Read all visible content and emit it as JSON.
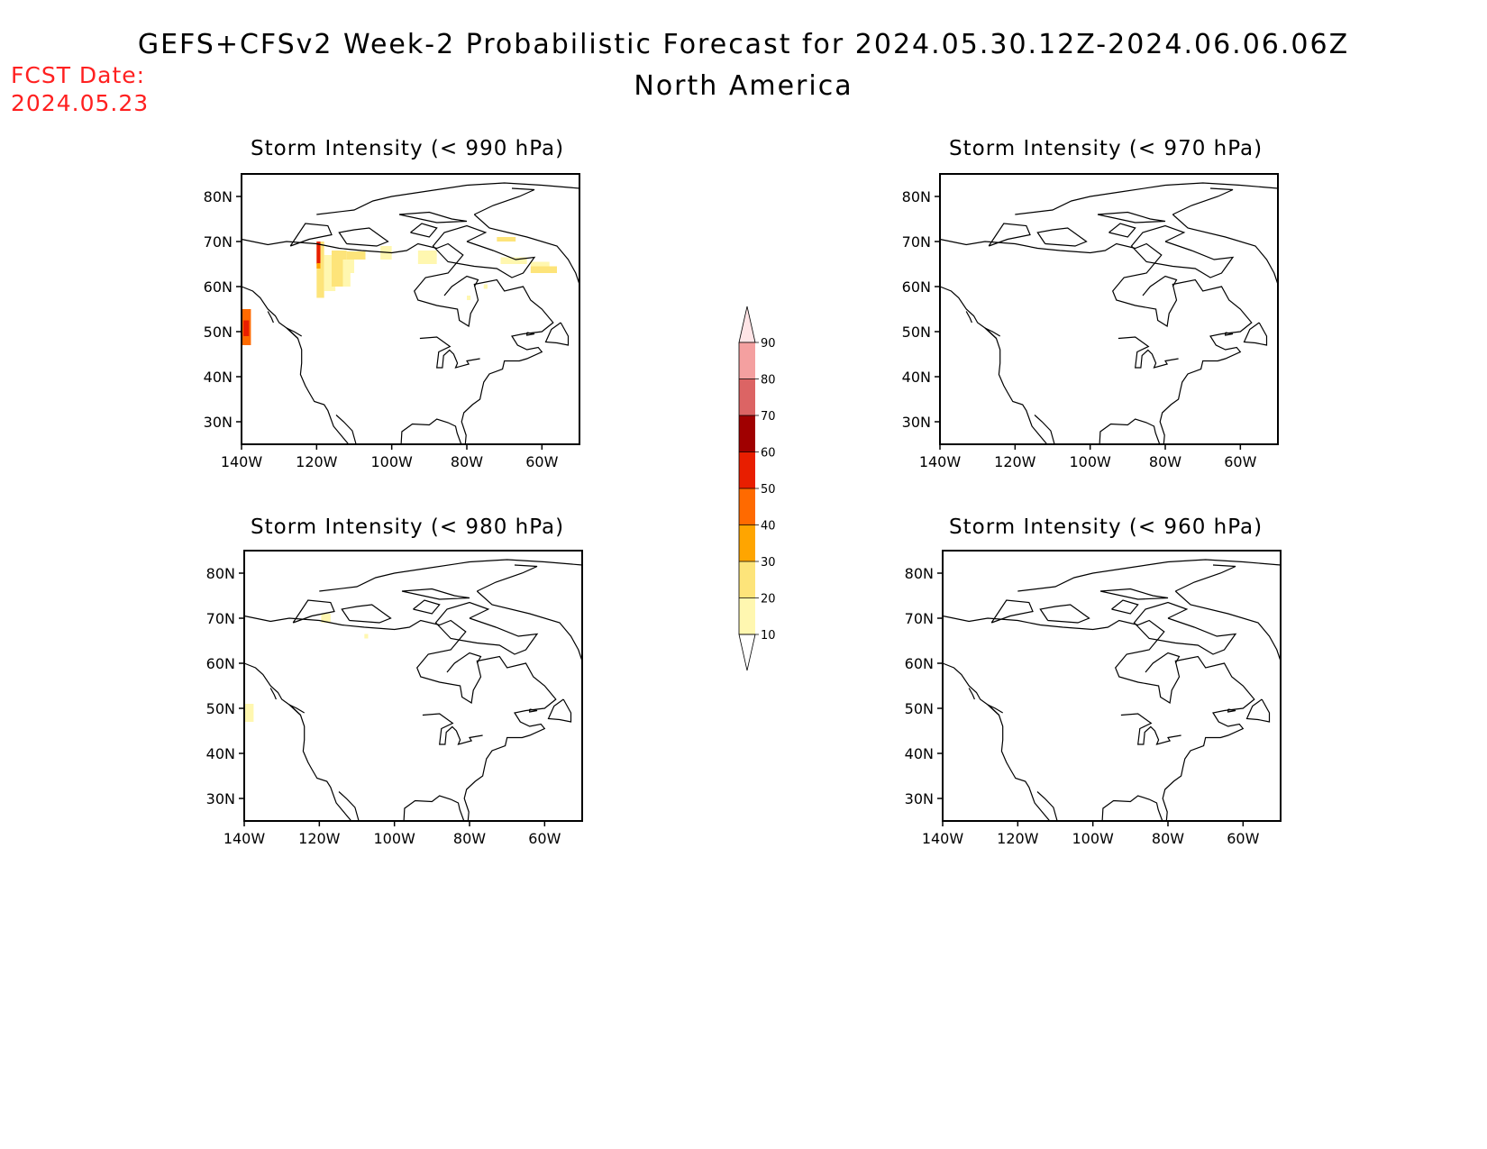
{
  "header": {
    "title": "GEFS+CFSv2 Week-2 Probabilistic Forecast for 2024.05.30.12Z-2024.06.06.06Z",
    "subtitle": "North America",
    "fcst_label": "FCST Date:",
    "fcst_date": "2024.05.23"
  },
  "panels": [
    {
      "title": "Storm Intensity (< 990 hPa)"
    },
    {
      "title": "Storm Intensity (< 970 hPa)"
    },
    {
      "title": "Storm Intensity (< 980 hPa)"
    },
    {
      "title": "Storm Intensity (< 960 hPa)"
    }
  ],
  "axes": {
    "lat_ticks": [
      "30N",
      "40N",
      "50N",
      "60N",
      "70N",
      "80N"
    ],
    "lon_ticks": [
      "140W",
      "120W",
      "100W",
      "80W",
      "60W"
    ]
  },
  "colorbar": {
    "levels": [
      "10",
      "20",
      "30",
      "40",
      "50",
      "60",
      "70",
      "80",
      "90"
    ],
    "colors": [
      "#fff7b0",
      "#fde47a",
      "#ffa500",
      "#ff6a00",
      "#e81e00",
      "#a00000",
      "#dc6464",
      "#f4a0a0",
      "#ffe4e6"
    ]
  },
  "map": {
    "lon_min": -140,
    "lon_max": -50,
    "lat_min": 25,
    "lat_max": 85,
    "coast_color": "#000000"
  }
}
